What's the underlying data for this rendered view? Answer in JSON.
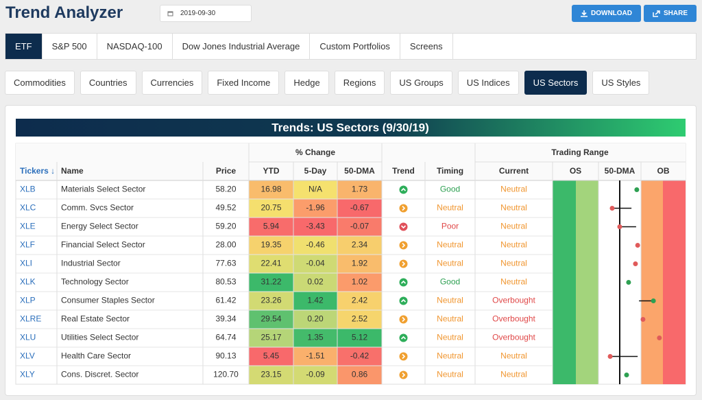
{
  "header": {
    "title": "Trend Analyzer",
    "date": "2019-09-30",
    "buttons": [
      "DOWNLOAD",
      "SHARE"
    ]
  },
  "tabs": {
    "items": [
      "ETF",
      "S&P 500",
      "NASDAQ-100",
      "Dow Jones Industrial Average",
      "Custom Portfolios",
      "Screens"
    ],
    "active": 0
  },
  "subtabs": {
    "items": [
      "Commodities",
      "Countries",
      "Currencies",
      "Fixed Income",
      "Hedge",
      "Regions",
      "US Groups",
      "US Indices",
      "US Sectors",
      "US Styles"
    ],
    "active": 8
  },
  "table": {
    "title": "Trends: US Sectors (9/30/19)",
    "groups": [
      "% Change",
      "Trading Range"
    ],
    "columns": [
      "Tickers ↓",
      "Name",
      "Price",
      "YTD",
      "5-Day",
      "50-DMA",
      "Trend",
      "Timing",
      "Current",
      "OS",
      "50-DMA",
      "OB"
    ],
    "range_lim": [
      -3,
      3
    ],
    "rows": [
      {
        "ticker": "XLB",
        "name": "Materials Select Sector",
        "price": "58.20",
        "ytd": "16.98",
        "d5": "N/A",
        "dma50": "1.73",
        "trend": "up",
        "timing": "Good",
        "timing_color": "#2ea052",
        "current": "Neutral",
        "current_color": "#f0952e",
        "range": {
          "value": 0.8,
          "color": "#2ea052"
        }
      },
      {
        "ticker": "XLC",
        "name": "Comm. Svcs Sector",
        "price": "49.52",
        "ytd": "20.75",
        "d5": "-1.96",
        "dma50": "-0.67",
        "trend": "neutral",
        "timing": "Neutral",
        "timing_color": "#f0952e",
        "current": "Neutral",
        "current_color": "#f0952e",
        "range": {
          "value": -0.31,
          "prior": 0.56,
          "color": "#e05a5a"
        }
      },
      {
        "ticker": "XLE",
        "name": "Energy Select Sector",
        "price": "59.20",
        "ytd": "5.94",
        "d5": "-3.43",
        "dma50": "-0.07",
        "trend": "down",
        "timing": "Poor",
        "timing_color": "#e04848",
        "current": "Neutral",
        "current_color": "#f0952e",
        "range": {
          "value": 0.03,
          "prior": 0.77,
          "color": "#e05a5a"
        }
      },
      {
        "ticker": "XLF",
        "name": "Financial Select Sector",
        "price": "28.00",
        "ytd": "19.35",
        "d5": "-0.46",
        "dma50": "2.34",
        "trend": "neutral",
        "timing": "Neutral",
        "timing_color": "#f0952e",
        "current": "Neutral",
        "current_color": "#f0952e",
        "range": {
          "value": 0.84,
          "color": "#e05a5a"
        }
      },
      {
        "ticker": "XLI",
        "name": "Industrial Sector",
        "price": "77.63",
        "ytd": "22.41",
        "d5": "-0.04",
        "dma50": "1.92",
        "trend": "neutral",
        "timing": "Neutral",
        "timing_color": "#f0952e",
        "current": "Neutral",
        "current_color": "#f0952e",
        "range": {
          "value": 0.74,
          "color": "#e05a5a"
        }
      },
      {
        "ticker": "XLK",
        "name": "Technology Sector",
        "price": "80.53",
        "ytd": "31.22",
        "d5": "0.02",
        "dma50": "1.02",
        "trend": "up",
        "timing": "Good",
        "timing_color": "#2ea052",
        "current": "Neutral",
        "current_color": "#f0952e",
        "range": {
          "value": 0.43,
          "color": "#2ea052"
        }
      },
      {
        "ticker": "XLP",
        "name": "Consumer Staples Sector",
        "price": "61.42",
        "ytd": "23.26",
        "d5": "1.42",
        "dma50": "2.42",
        "trend": "up",
        "timing": "Neutral",
        "timing_color": "#f0952e",
        "current": "Overbought",
        "current_color": "#e04848",
        "range": {
          "value": 1.55,
          "prior": 0.9,
          "color": "#2ea052"
        }
      },
      {
        "ticker": "XLRE",
        "name": "Real Estate Sector",
        "price": "39.34",
        "ytd": "29.54",
        "d5": "0.20",
        "dma50": "2.52",
        "trend": "neutral",
        "timing": "Neutral",
        "timing_color": "#f0952e",
        "current": "Overbought",
        "current_color": "#e04848",
        "range": {
          "value": 1.08,
          "color": "#e05a5a"
        }
      },
      {
        "ticker": "XLU",
        "name": "Utilities Select Sector",
        "price": "64.74",
        "ytd": "25.17",
        "d5": "1.35",
        "dma50": "5.12",
        "trend": "up",
        "timing": "Neutral",
        "timing_color": "#f0952e",
        "current": "Overbought",
        "current_color": "#e04848",
        "range": {
          "value": 1.82,
          "color": "#e05a5a"
        }
      },
      {
        "ticker": "XLV",
        "name": "Health Care Sector",
        "price": "90.13",
        "ytd": "5.45",
        "d5": "-1.51",
        "dma50": "-0.42",
        "trend": "neutral",
        "timing": "Neutral",
        "timing_color": "#f0952e",
        "current": "Neutral",
        "current_color": "#f0952e",
        "range": {
          "value": -0.4,
          "prior": 0.84,
          "color": "#e05a5a"
        }
      },
      {
        "ticker": "XLY",
        "name": "Cons. Discret. Sector",
        "price": "120.70",
        "ytd": "23.15",
        "d5": "-0.09",
        "dma50": "0.86",
        "trend": "neutral",
        "timing": "Neutral",
        "timing_color": "#f0952e",
        "current": "Neutral",
        "current_color": "#f0952e",
        "range": {
          "value": 0.34,
          "color": "#2ea052"
        }
      }
    ]
  }
}
